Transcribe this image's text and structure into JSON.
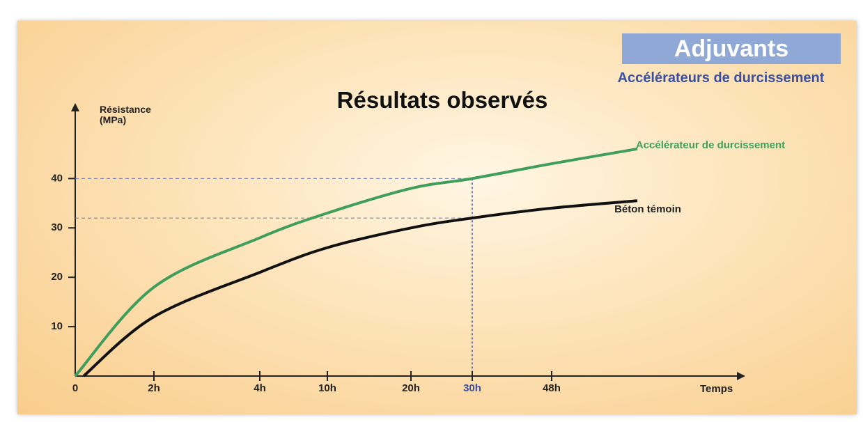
{
  "chart_data": {
    "type": "line",
    "title": "Résultats observés",
    "badge": "Adjuvants",
    "subtitle": "Accélérateurs de durcissement",
    "y_label": "Résistance (MPa)",
    "x_label": "Temps",
    "categories": [
      "0",
      "2h",
      "4h",
      "10h",
      "20h",
      "30h",
      "48h",
      null
    ],
    "series": [
      {
        "name": "Accélérateur de durcissement",
        "color": "#3f9e5c",
        "values": [
          0,
          18,
          28,
          33,
          38,
          40,
          43,
          46
        ]
      },
      {
        "name": "Béton témoin",
        "color": "#111111",
        "values": [
          0,
          12,
          21,
          26,
          30,
          32,
          34,
          35.5
        ]
      }
    ],
    "ylim": [
      0,
      55
    ],
    "yticks": [
      10,
      20,
      30,
      40
    ],
    "guides": [
      40,
      32
    ],
    "highlight": {
      "category": "30h",
      "color": "#3a4fa0"
    }
  }
}
